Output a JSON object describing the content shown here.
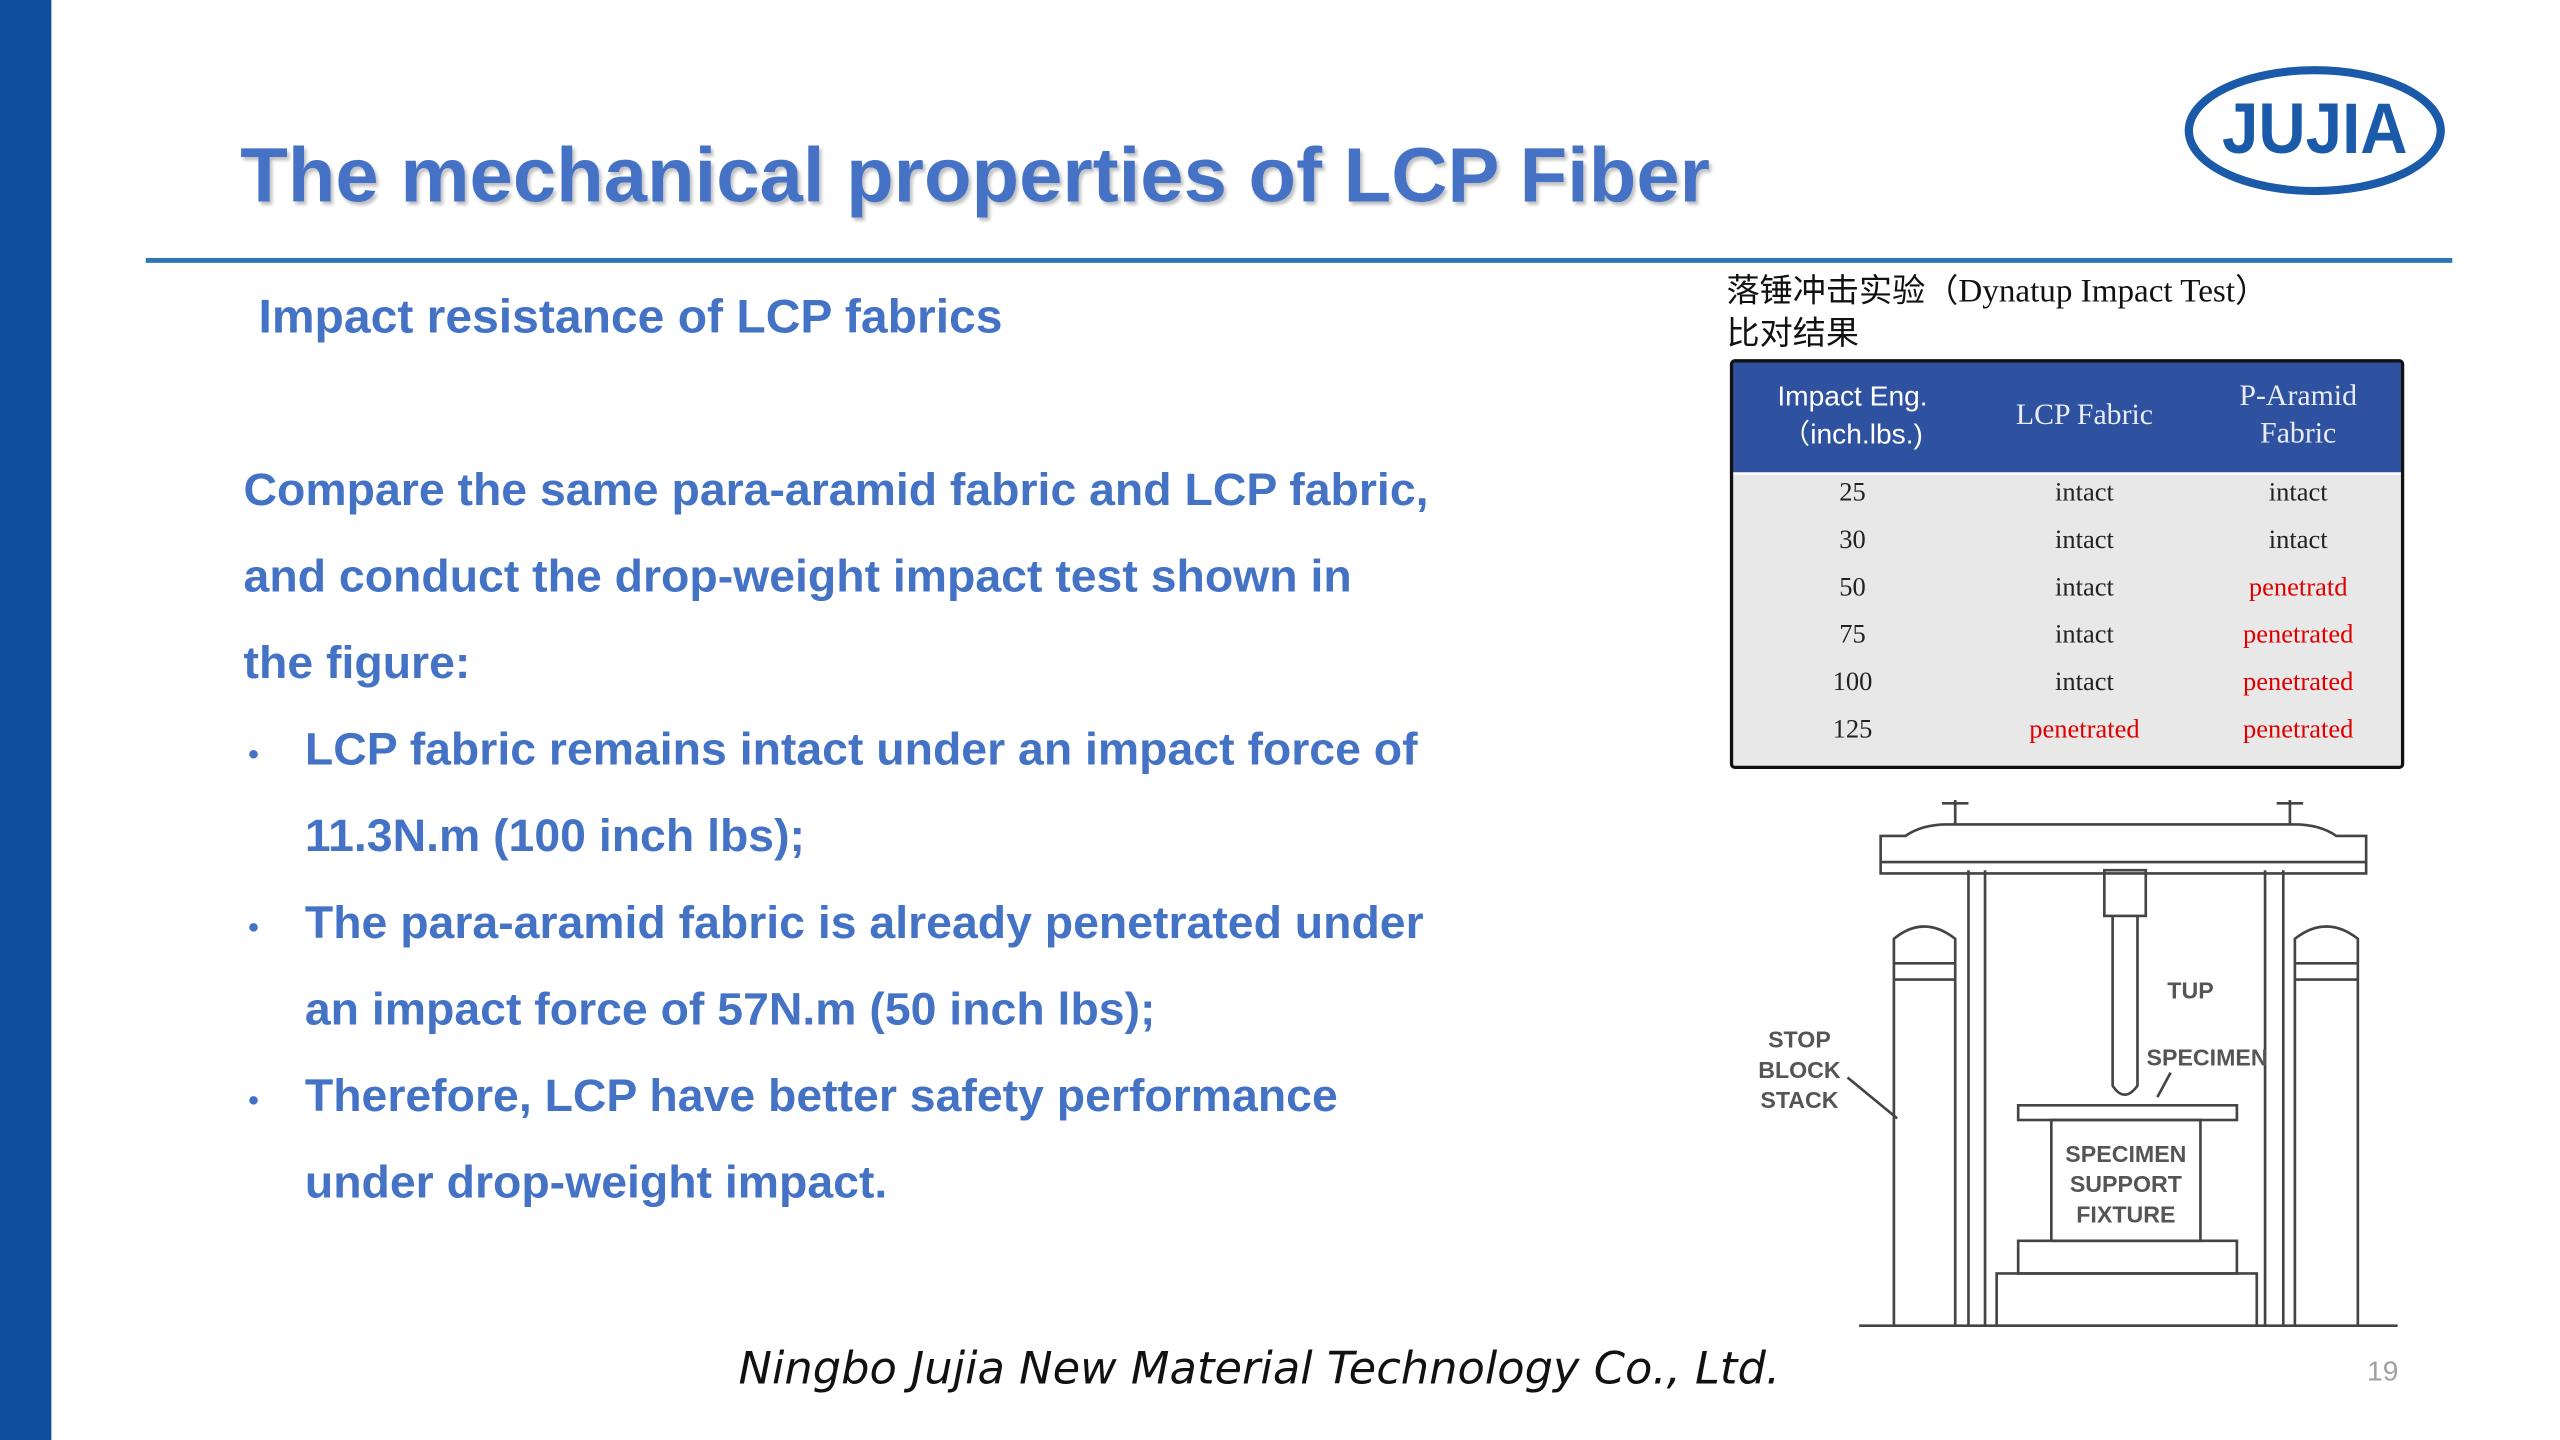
{
  "header": {
    "title": "The mechanical properties of LCP Fiber",
    "logo": "JUJIA"
  },
  "body": {
    "subtitle": "Impact resistance of LCP fabrics",
    "intro_lines": [
      "Compare the same para-aramid fabric and LCP fabric,",
      "and conduct the drop-weight impact test shown in",
      "the figure:"
    ],
    "bullets": [
      {
        "lines": [
          "LCP fabric remains intact under an impact force of",
          "11.3N.m (100 inch lbs);"
        ]
      },
      {
        "lines": [
          "The para-aramid fabric is already penetrated under",
          "an impact force of 57N.m (50 inch lbs);"
        ]
      },
      {
        "lines": [
          "Therefore, LCP have better safety performance",
          "under drop-weight impact."
        ]
      }
    ]
  },
  "table": {
    "caption_lines": [
      "落锤冲击实验（Dynatup Impact Test）",
      "比对结果"
    ],
    "headers": [
      [
        "Impact Eng.",
        "（inch.lbs.)"
      ],
      [
        "LCP Fabric"
      ],
      [
        "P-Aramid",
        "Fabric"
      ]
    ],
    "rows": [
      [
        25,
        "intact",
        "intact"
      ],
      [
        30,
        "intact",
        "intact"
      ],
      [
        50,
        "intact",
        "penetratd"
      ],
      [
        75,
        "intact",
        "penetrated"
      ],
      [
        100,
        "intact",
        "penetrated"
      ],
      [
        125,
        "penetrated",
        "penetrated"
      ]
    ]
  },
  "figure": {
    "labels": [
      {
        "lines": [
          "STOP",
          "BLOCK",
          "STACK"
        ]
      },
      {
        "lines": [
          "TUP"
        ]
      },
      {
        "lines": [
          "SPECIMEN"
        ]
      },
      {
        "lines": [
          "SPECIMEN",
          "SUPPORT",
          "FIXTURE"
        ]
      }
    ]
  },
  "footer": {
    "company": "Ningbo Jujia New Material Technology Co., Ltd.",
    "page": 19
  }
}
